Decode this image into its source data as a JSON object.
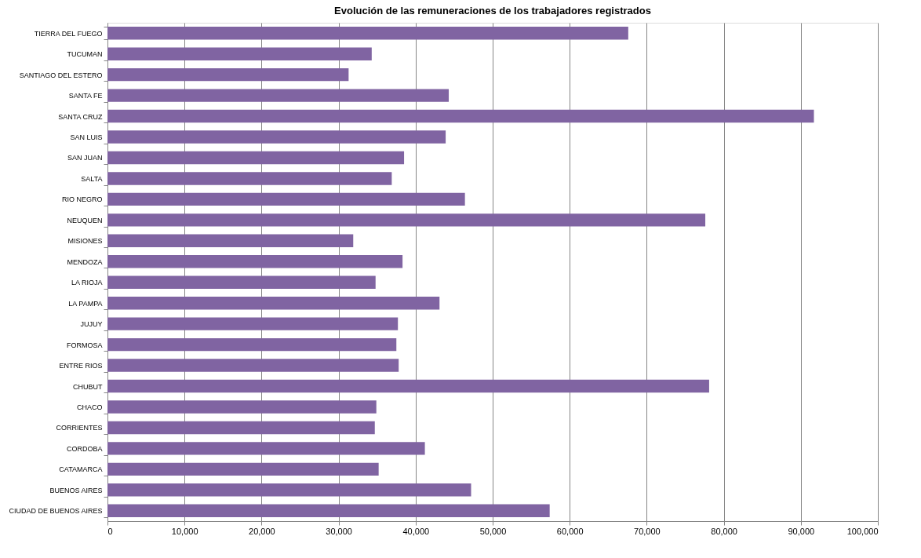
{
  "chart_data": {
    "type": "bar",
    "orientation": "horizontal",
    "title": "Evolución de las remuneraciones de los trabajadores registrados",
    "categories": [
      "TIERRA DEL FUEGO",
      "TUCUMAN",
      "SANTIAGO DEL ESTERO",
      "SANTA FE",
      "SANTA CRUZ",
      "SAN LUIS",
      "SAN JUAN",
      "SALTA",
      "RIO NEGRO",
      "NEUQUEN",
      "MISIONES",
      "MENDOZA",
      "LA RIOJA",
      "LA PAMPA",
      "JUJUY",
      "FORMOSA",
      "ENTRE RIOS",
      "CHUBUT",
      "CHACO",
      "CORRIENTES",
      "CORDOBA",
      "CATAMARCA",
      "BUENOS AIRES",
      "CIUDAD DE BUENOS AIRES"
    ],
    "series": [
      {
        "color": "#8064a2",
        "values": [
          67600,
          34300,
          31300,
          44300,
          91700,
          43900,
          38500,
          36900,
          46400,
          77600,
          31900,
          38300,
          34800,
          43100,
          37700,
          37500,
          37800,
          78100,
          34900,
          34700,
          41200,
          35200,
          47200,
          57400
        ]
      }
    ],
    "xlim": [
      0,
      100000
    ],
    "xticks": [
      {
        "value": 0,
        "label": "0"
      },
      {
        "value": 10000,
        "label": "10,000"
      },
      {
        "value": 20000,
        "label": "20,000"
      },
      {
        "value": 30000,
        "label": "30,000"
      },
      {
        "value": 40000,
        "label": "40,000"
      },
      {
        "value": 50000,
        "label": "50,000"
      },
      {
        "value": 60000,
        "label": "60,000"
      },
      {
        "value": 70000,
        "label": "70,000"
      },
      {
        "value": 80000,
        "label": "80,000"
      },
      {
        "value": 90000,
        "label": "90,000"
      },
      {
        "value": 100000,
        "label": "100,000"
      }
    ],
    "grid": "x",
    "legend": false
  }
}
